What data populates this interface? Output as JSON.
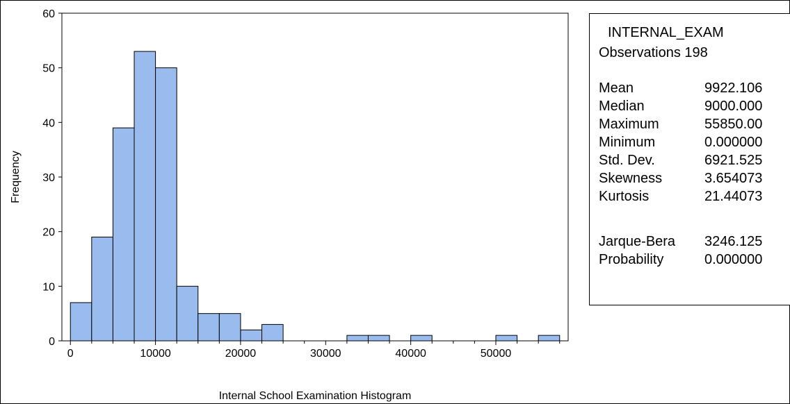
{
  "chart_data": {
    "type": "bar",
    "bin_width": 2500,
    "bins": [
      {
        "start": 0,
        "end": 2500,
        "count": 7
      },
      {
        "start": 2500,
        "end": 5000,
        "count": 19
      },
      {
        "start": 5000,
        "end": 7500,
        "count": 39
      },
      {
        "start": 7500,
        "end": 10000,
        "count": 53
      },
      {
        "start": 10000,
        "end": 12500,
        "count": 50
      },
      {
        "start": 12500,
        "end": 15000,
        "count": 10
      },
      {
        "start": 15000,
        "end": 17500,
        "count": 5
      },
      {
        "start": 17500,
        "end": 20000,
        "count": 5
      },
      {
        "start": 20000,
        "end": 22500,
        "count": 2
      },
      {
        "start": 22500,
        "end": 25000,
        "count": 3
      },
      {
        "start": 25000,
        "end": 27500,
        "count": 0
      },
      {
        "start": 27500,
        "end": 30000,
        "count": 0
      },
      {
        "start": 30000,
        "end": 32500,
        "count": 0
      },
      {
        "start": 32500,
        "end": 35000,
        "count": 1
      },
      {
        "start": 35000,
        "end": 37500,
        "count": 1
      },
      {
        "start": 37500,
        "end": 40000,
        "count": 0
      },
      {
        "start": 40000,
        "end": 42500,
        "count": 1
      },
      {
        "start": 42500,
        "end": 45000,
        "count": 0
      },
      {
        "start": 45000,
        "end": 47500,
        "count": 0
      },
      {
        "start": 47500,
        "end": 50000,
        "count": 0
      },
      {
        "start": 50000,
        "end": 52500,
        "count": 1
      },
      {
        "start": 52500,
        "end": 55000,
        "count": 0
      },
      {
        "start": 55000,
        "end": 57500,
        "count": 1
      }
    ],
    "xlim": [
      -1000,
      58500
    ],
    "ylim": [
      0,
      60
    ],
    "x_ticks": [
      0,
      10000,
      20000,
      30000,
      40000,
      50000
    ],
    "y_ticks": [
      0,
      10,
      20,
      30,
      40,
      50,
      60
    ],
    "xlabel": "Internal School Examination Histogram",
    "ylabel": "Frequency",
    "title": "",
    "bar_color": "#99bbee",
    "grid": false
  },
  "stats": {
    "series_name": "INTERNAL_EXAM",
    "observations_label": "Observations 198",
    "rows": [
      {
        "name": "Mean",
        "value": "9922.106"
      },
      {
        "name": "Median",
        "value": "9000.000"
      },
      {
        "name": "Maximum",
        "value": "55850.00"
      },
      {
        "name": "Minimum",
        "value": "0.000000"
      },
      {
        "name": "Std. Dev.",
        "value": "6921.525"
      },
      {
        "name": "Skewness",
        "value": "3.654073"
      },
      {
        "name": "Kurtosis",
        "value": "21.44073"
      },
      {
        "name": "Jarque-Bera",
        "value": "3246.125"
      },
      {
        "name": "Probability",
        "value": "0.000000"
      }
    ]
  }
}
